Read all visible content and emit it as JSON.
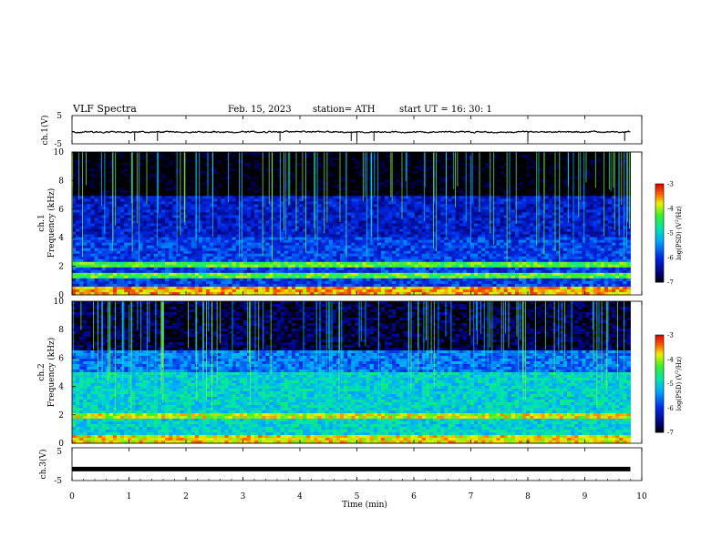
{
  "header": {
    "title": "VLF  Spectra",
    "date": "Feb. 15, 2023",
    "station": "station= ATH",
    "start": "start  UT  =   16: 30: 1"
  },
  "chart_data": [
    {
      "type": "line",
      "name": "ch1-waveform",
      "ylabel": "ch.1(V)",
      "ylim": [
        -5,
        5
      ],
      "yticks": [
        "5",
        "-5"
      ],
      "xlim": [
        0,
        10
      ],
      "approx_level": -0.8,
      "spike_times_min": [
        1.1,
        1.5,
        3.65,
        4.9,
        5.0,
        5.3,
        8.0,
        9.7
      ]
    },
    {
      "type": "heatmap",
      "name": "ch1-spectrogram",
      "ylabel": "ch.1\nFrequency (kHz)",
      "ylabel_lines": [
        "ch.1",
        "Frequency (kHz)"
      ],
      "ylim": [
        0,
        10
      ],
      "yticks": [
        "0",
        "2",
        "4",
        "6",
        "8",
        "10"
      ],
      "xlim": [
        0,
        10
      ],
      "data_end_min": 9.8,
      "colorbar": {
        "label": "log(PSD) (V²/Hz)",
        "label_lines": [
          "log(PSD)",
          "(V",
          "2",
          "/Hz)"
        ],
        "range": [
          -7,
          -3
        ],
        "ticks": [
          "-3",
          "-4",
          "-5",
          "-6",
          "-7"
        ]
      }
    },
    {
      "type": "heatmap",
      "name": "ch2-spectrogram",
      "ylabel": "ch.2\nFrequency (kHz)",
      "ylabel_lines": [
        "ch.2",
        "Frequency (kHz)"
      ],
      "ylim": [
        0,
        10
      ],
      "yticks": [
        "0",
        "2",
        "4",
        "6",
        "8",
        "10"
      ],
      "xlim": [
        0,
        10
      ],
      "data_end_min": 9.8,
      "colorbar": {
        "label": "log(PSD) (V²/Hz)",
        "label_lines": [
          "log(PSD)",
          "(V",
          "2",
          "/Hz)"
        ],
        "range": [
          -7,
          -3
        ],
        "ticks": [
          "-3",
          "-4",
          "-5",
          "-6",
          "-7"
        ]
      }
    },
    {
      "type": "line",
      "name": "ch3-waveform",
      "ylabel": "ch.3(V)",
      "ylim": [
        -5,
        5
      ],
      "yticks": [
        "5",
        "-5"
      ],
      "xlim": [
        0,
        10
      ],
      "approx_level": -1.5,
      "xlabel": "Time  (min)",
      "xticks": [
        "0",
        "1",
        "2",
        "3",
        "4",
        "5",
        "6",
        "7",
        "8",
        "9",
        "10"
      ]
    }
  ]
}
